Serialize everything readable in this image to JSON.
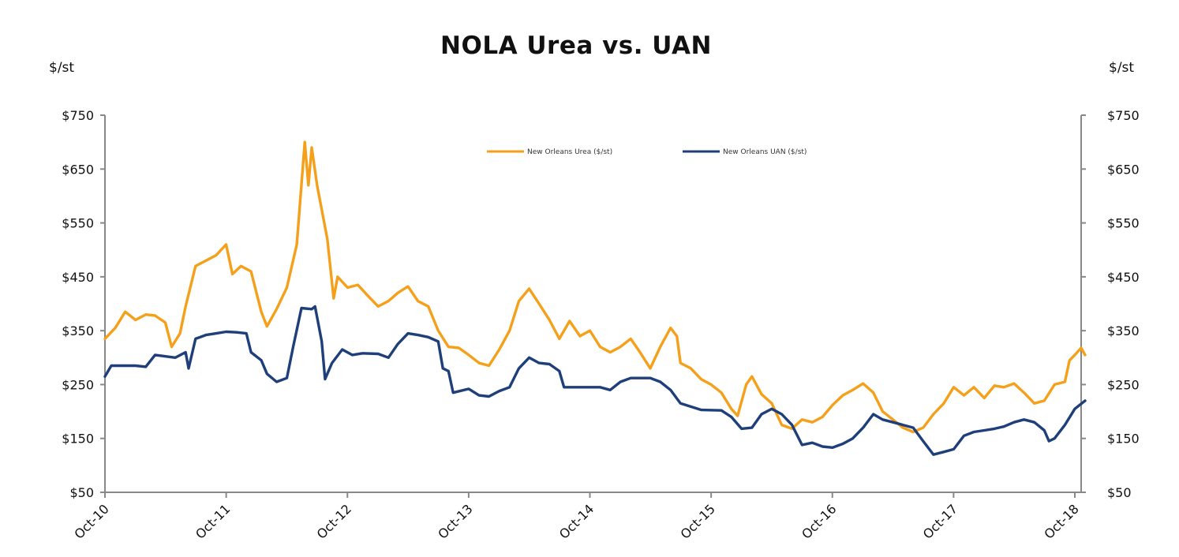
{
  "chart_data": {
    "type": "line",
    "title": "NOLA Urea vs. UAN",
    "ylabel_left": "$/st",
    "ylabel_right": "$/st",
    "ylim": [
      50,
      750
    ],
    "y_ticks": [
      50,
      150,
      250,
      350,
      450,
      550,
      650,
      750
    ],
    "y_tick_labels": [
      "$50",
      "$150",
      "$250",
      "$350",
      "$450",
      "$550",
      "$650",
      "$750"
    ],
    "x_ticks": [
      "Oct-10",
      "Oct-11",
      "Oct-12",
      "Oct-13",
      "Oct-14",
      "Oct-15",
      "Oct-16",
      "Oct-17",
      "Oct-18"
    ],
    "x_range": [
      "2010-10",
      "2018-11"
    ],
    "grid": false,
    "legend_position": "top-center",
    "series": [
      {
        "name": "New Orleans Urea ($/st)",
        "color": "#F5A01A",
        "points": [
          [
            "2010-10-01",
            335
          ],
          [
            "2010-11-01",
            355
          ],
          [
            "2010-12-01",
            385
          ],
          [
            "2011-01-01",
            370
          ],
          [
            "2011-02-01",
            380
          ],
          [
            "2011-03-01",
            378
          ],
          [
            "2011-04-01",
            365
          ],
          [
            "2011-04-20",
            320
          ],
          [
            "2011-05-15",
            345
          ],
          [
            "2011-06-01",
            395
          ],
          [
            "2011-07-01",
            470
          ],
          [
            "2011-08-01",
            480
          ],
          [
            "2011-09-01",
            490
          ],
          [
            "2011-10-01",
            510
          ],
          [
            "2011-10-20",
            455
          ],
          [
            "2011-11-15",
            470
          ],
          [
            "2011-12-15",
            460
          ],
          [
            "2012-01-15",
            385
          ],
          [
            "2012-02-01",
            358
          ],
          [
            "2012-03-01",
            390
          ],
          [
            "2012-04-01",
            430
          ],
          [
            "2012-05-01",
            510
          ],
          [
            "2012-05-25",
            700
          ],
          [
            "2012-06-05",
            620
          ],
          [
            "2012-06-15",
            690
          ],
          [
            "2012-07-01",
            620
          ],
          [
            "2012-08-01",
            520
          ],
          [
            "2012-08-20",
            410
          ],
          [
            "2012-09-01",
            450
          ],
          [
            "2012-10-01",
            430
          ],
          [
            "2012-11-01",
            435
          ],
          [
            "2012-12-01",
            415
          ],
          [
            "2013-01-01",
            395
          ],
          [
            "2013-02-01",
            405
          ],
          [
            "2013-03-01",
            420
          ],
          [
            "2013-04-01",
            432
          ],
          [
            "2013-05-01",
            405
          ],
          [
            "2013-06-01",
            395
          ],
          [
            "2013-07-01",
            350
          ],
          [
            "2013-08-01",
            320
          ],
          [
            "2013-09-01",
            318
          ],
          [
            "2013-10-01",
            305
          ],
          [
            "2013-11-01",
            290
          ],
          [
            "2013-12-01",
            285
          ],
          [
            "2014-01-01",
            315
          ],
          [
            "2014-02-01",
            350
          ],
          [
            "2014-03-01",
            405
          ],
          [
            "2014-04-01",
            428
          ],
          [
            "2014-05-01",
            400
          ],
          [
            "2014-06-01",
            370
          ],
          [
            "2014-07-01",
            335
          ],
          [
            "2014-08-01",
            368
          ],
          [
            "2014-09-01",
            340
          ],
          [
            "2014-10-01",
            350
          ],
          [
            "2014-11-01",
            320
          ],
          [
            "2014-12-01",
            310
          ],
          [
            "2015-01-01",
            320
          ],
          [
            "2015-02-01",
            335
          ],
          [
            "2015-03-01",
            310
          ],
          [
            "2015-04-01",
            280
          ],
          [
            "2015-05-01",
            320
          ],
          [
            "2015-06-01",
            355
          ],
          [
            "2015-06-20",
            340
          ],
          [
            "2015-07-01",
            290
          ],
          [
            "2015-08-01",
            280
          ],
          [
            "2015-09-01",
            260
          ],
          [
            "2015-10-01",
            250
          ],
          [
            "2015-11-01",
            235
          ],
          [
            "2015-12-01",
            205
          ],
          [
            "2015-12-20",
            192
          ],
          [
            "2016-01-15",
            250
          ],
          [
            "2016-02-01",
            265
          ],
          [
            "2016-03-01",
            232
          ],
          [
            "2016-04-01",
            215
          ],
          [
            "2016-05-01",
            175
          ],
          [
            "2016-06-01",
            168
          ],
          [
            "2016-07-01",
            185
          ],
          [
            "2016-08-01",
            180
          ],
          [
            "2016-09-01",
            190
          ],
          [
            "2016-10-01",
            212
          ],
          [
            "2016-11-01",
            230
          ],
          [
            "2016-12-01",
            240
          ],
          [
            "2017-01-01",
            252
          ],
          [
            "2017-02-01",
            235
          ],
          [
            "2017-03-01",
            200
          ],
          [
            "2017-04-01",
            185
          ],
          [
            "2017-05-01",
            170
          ],
          [
            "2017-06-01",
            162
          ],
          [
            "2017-07-01",
            170
          ],
          [
            "2017-08-01",
            195
          ],
          [
            "2017-09-01",
            215
          ],
          [
            "2017-10-01",
            245
          ],
          [
            "2017-11-01",
            230
          ],
          [
            "2017-12-01",
            245
          ],
          [
            "2018-01-01",
            225
          ],
          [
            "2018-02-01",
            248
          ],
          [
            "2018-03-01",
            245
          ],
          [
            "2018-04-01",
            252
          ],
          [
            "2018-05-01",
            235
          ],
          [
            "2018-06-01",
            215
          ],
          [
            "2018-07-01",
            220
          ],
          [
            "2018-08-01",
            250
          ],
          [
            "2018-09-01",
            255
          ],
          [
            "2018-09-15",
            295
          ],
          [
            "2018-10-01",
            305
          ],
          [
            "2018-10-20",
            318
          ],
          [
            "2018-11-01",
            305
          ]
        ]
      },
      {
        "name": "New Orleans UAN ($/st)",
        "color": "#1E3F7A",
        "points": [
          [
            "2010-10-01",
            265
          ],
          [
            "2010-10-20",
            285
          ],
          [
            "2011-01-01",
            285
          ],
          [
            "2011-02-01",
            283
          ],
          [
            "2011-03-01",
            305
          ],
          [
            "2011-05-01",
            300
          ],
          [
            "2011-06-01",
            310
          ],
          [
            "2011-06-10",
            280
          ],
          [
            "2011-07-01",
            335
          ],
          [
            "2011-08-01",
            342
          ],
          [
            "2011-09-01",
            345
          ],
          [
            "2011-10-01",
            348
          ],
          [
            "2011-11-01",
            347
          ],
          [
            "2011-12-01",
            345
          ],
          [
            "2011-12-15",
            310
          ],
          [
            "2012-01-15",
            295
          ],
          [
            "2012-02-01",
            270
          ],
          [
            "2012-03-01",
            255
          ],
          [
            "2012-04-01",
            262
          ],
          [
            "2012-04-20",
            320
          ],
          [
            "2012-05-15",
            392
          ],
          [
            "2012-06-15",
            390
          ],
          [
            "2012-06-25",
            395
          ],
          [
            "2012-07-15",
            330
          ],
          [
            "2012-07-25",
            260
          ],
          [
            "2012-08-15",
            290
          ],
          [
            "2012-09-15",
            315
          ],
          [
            "2012-10-15",
            305
          ],
          [
            "2012-11-15",
            308
          ],
          [
            "2013-01-01",
            307
          ],
          [
            "2013-02-01",
            300
          ],
          [
            "2013-03-01",
            325
          ],
          [
            "2013-04-01",
            345
          ],
          [
            "2013-05-01",
            342
          ],
          [
            "2013-06-01",
            338
          ],
          [
            "2013-07-01",
            330
          ],
          [
            "2013-07-15",
            280
          ],
          [
            "2013-08-01",
            275
          ],
          [
            "2013-08-15",
            235
          ],
          [
            "2013-10-01",
            242
          ],
          [
            "2013-11-01",
            230
          ],
          [
            "2013-12-01",
            228
          ],
          [
            "2014-01-01",
            238
          ],
          [
            "2014-02-01",
            245
          ],
          [
            "2014-03-01",
            280
          ],
          [
            "2014-04-01",
            300
          ],
          [
            "2014-05-01",
            290
          ],
          [
            "2014-06-01",
            288
          ],
          [
            "2014-07-01",
            275
          ],
          [
            "2014-07-15",
            245
          ],
          [
            "2014-09-01",
            245
          ],
          [
            "2014-11-01",
            245
          ],
          [
            "2014-12-01",
            240
          ],
          [
            "2015-01-01",
            255
          ],
          [
            "2015-02-01",
            262
          ],
          [
            "2015-04-01",
            262
          ],
          [
            "2015-05-01",
            255
          ],
          [
            "2015-06-01",
            240
          ],
          [
            "2015-07-01",
            215
          ],
          [
            "2015-09-01",
            203
          ],
          [
            "2015-11-01",
            202
          ],
          [
            "2015-12-01",
            190
          ],
          [
            "2016-01-01",
            168
          ],
          [
            "2016-02-01",
            170
          ],
          [
            "2016-03-01",
            195
          ],
          [
            "2016-04-01",
            205
          ],
          [
            "2016-05-01",
            195
          ],
          [
            "2016-06-01",
            175
          ],
          [
            "2016-07-01",
            138
          ],
          [
            "2016-08-01",
            142
          ],
          [
            "2016-09-01",
            135
          ],
          [
            "2016-10-01",
            133
          ],
          [
            "2016-11-01",
            140
          ],
          [
            "2016-12-01",
            150
          ],
          [
            "2017-01-01",
            170
          ],
          [
            "2017-02-01",
            195
          ],
          [
            "2017-03-01",
            185
          ],
          [
            "2017-04-01",
            180
          ],
          [
            "2017-05-01",
            175
          ],
          [
            "2017-06-01",
            170
          ],
          [
            "2017-07-01",
            145
          ],
          [
            "2017-08-01",
            120
          ],
          [
            "2017-09-01",
            125
          ],
          [
            "2017-10-01",
            130
          ],
          [
            "2017-11-01",
            155
          ],
          [
            "2017-12-01",
            162
          ],
          [
            "2018-01-01",
            165
          ],
          [
            "2018-02-01",
            168
          ],
          [
            "2018-03-01",
            172
          ],
          [
            "2018-04-01",
            180
          ],
          [
            "2018-05-01",
            185
          ],
          [
            "2018-06-01",
            180
          ],
          [
            "2018-07-01",
            165
          ],
          [
            "2018-07-15",
            145
          ],
          [
            "2018-08-01",
            150
          ],
          [
            "2018-09-01",
            175
          ],
          [
            "2018-10-01",
            205
          ],
          [
            "2018-11-01",
            220
          ]
        ]
      }
    ]
  }
}
